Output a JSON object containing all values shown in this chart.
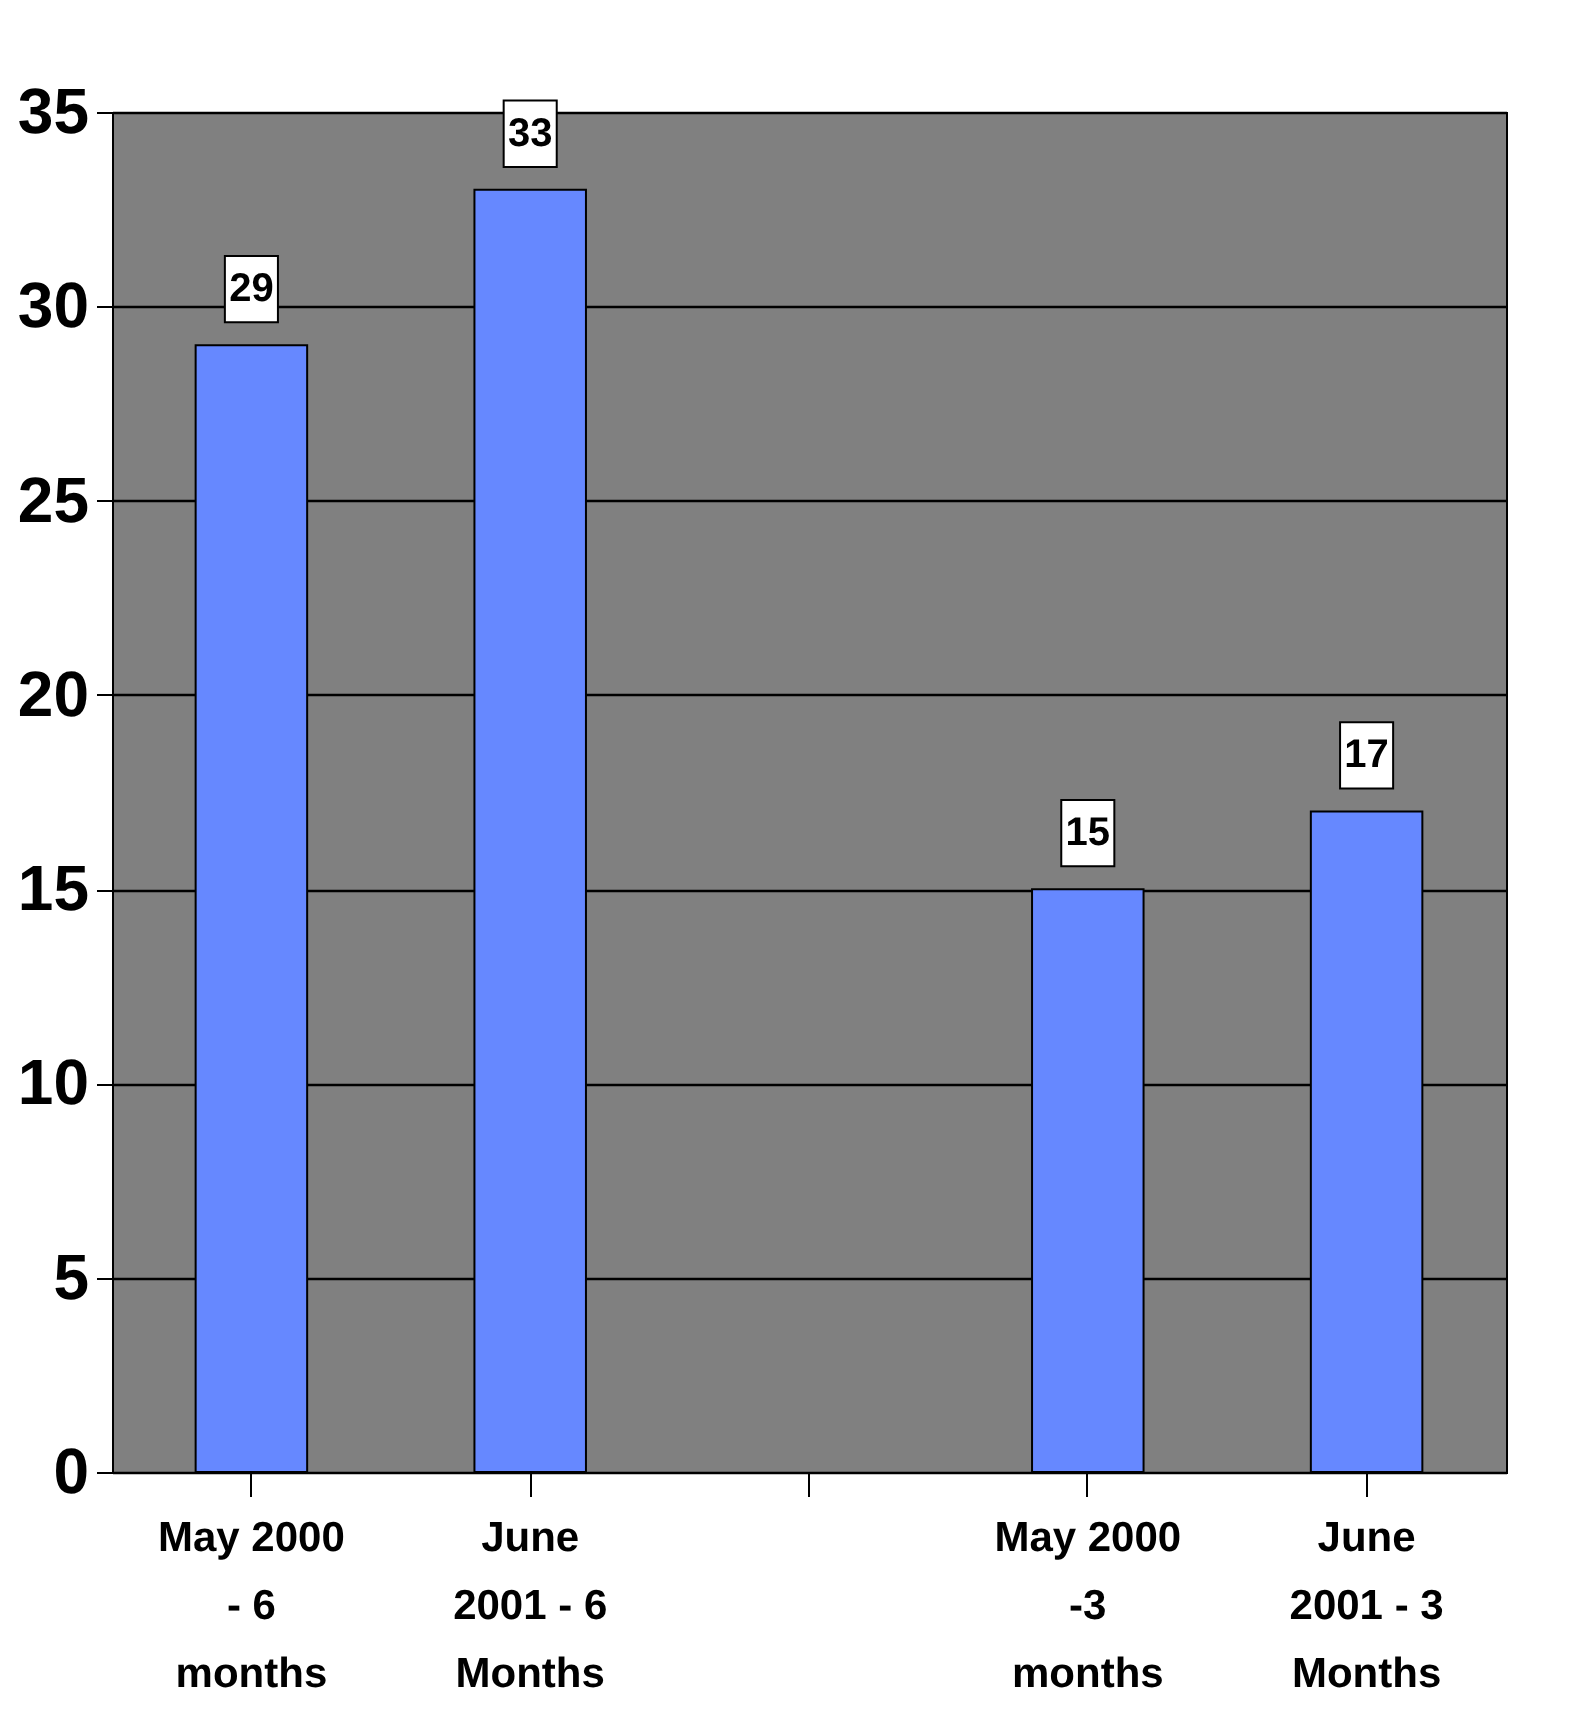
{
  "chart_data": {
    "type": "bar",
    "categories": [
      "May 2000 - 6 months",
      "June 2001 - 6 Months",
      null,
      "May 2000 -3 months",
      "June 2001 - 3 Months"
    ],
    "values": [
      29,
      33,
      null,
      15,
      17
    ],
    "color": "#6688ff",
    "ylim": [
      0,
      35
    ],
    "yticks": [
      0,
      5,
      10,
      15,
      20,
      25,
      30,
      35
    ],
    "grid": "y",
    "data_labels": true
  }
}
